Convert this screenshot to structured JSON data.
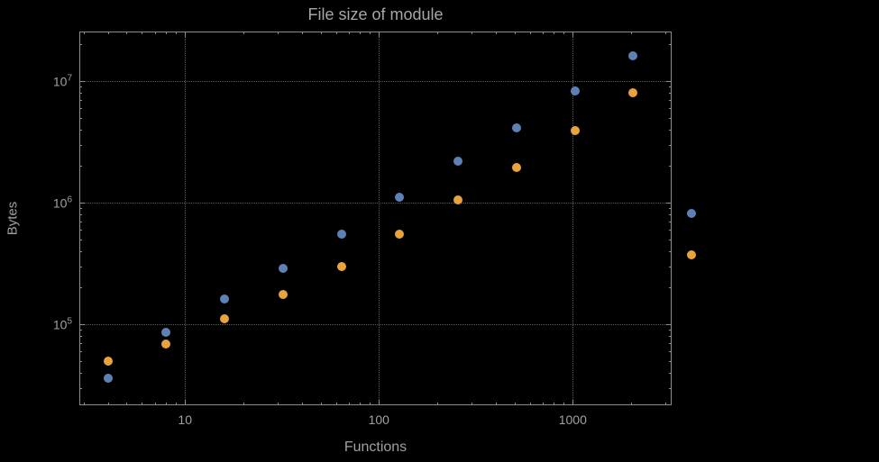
{
  "chart_data": {
    "type": "scatter",
    "title": "File size of module",
    "xlabel": "Functions",
    "ylabel": "Bytes",
    "x_scale": "log",
    "y_scale": "log",
    "grid": "major-dotted",
    "legend": "none",
    "series": [
      {
        "name": "series-blue",
        "color": "#5e81b5",
        "x": [
          4,
          8,
          16,
          32,
          64,
          128,
          256,
          512,
          1024,
          2048,
          4096
        ],
        "y": [
          36000,
          86000,
          160000,
          290000,
          550000,
          1100000,
          2200000,
          4100000,
          8300000,
          16000000,
          820000
        ]
      },
      {
        "name": "series-orange",
        "color": "#e8a33d",
        "x": [
          4,
          8,
          16,
          32,
          64,
          128,
          256,
          512,
          1024,
          2048,
          4096
        ],
        "y": [
          50000,
          69000,
          110000,
          175000,
          300000,
          550000,
          1050000,
          1950000,
          3900000,
          8000000,
          370000
        ]
      }
    ],
    "x_ticks": [
      {
        "label": "10",
        "log": 1
      },
      {
        "label": "100",
        "log": 2
      },
      {
        "label": "1000",
        "log": 3
      }
    ],
    "y_ticks": [
      {
        "base": "10",
        "exp": "5",
        "log": 5
      },
      {
        "base": "10",
        "exp": "6",
        "log": 6
      },
      {
        "base": "10",
        "exp": "7",
        "log": 7
      }
    ],
    "x_log_range": [
      0.455,
      3.51
    ],
    "y_log_range": [
      4.333,
      7.407
    ],
    "frame_color": "#8c8c8c",
    "grid_color": "#5a5a5a",
    "text_color": "#a0a0a0",
    "background_color": "#000000"
  }
}
